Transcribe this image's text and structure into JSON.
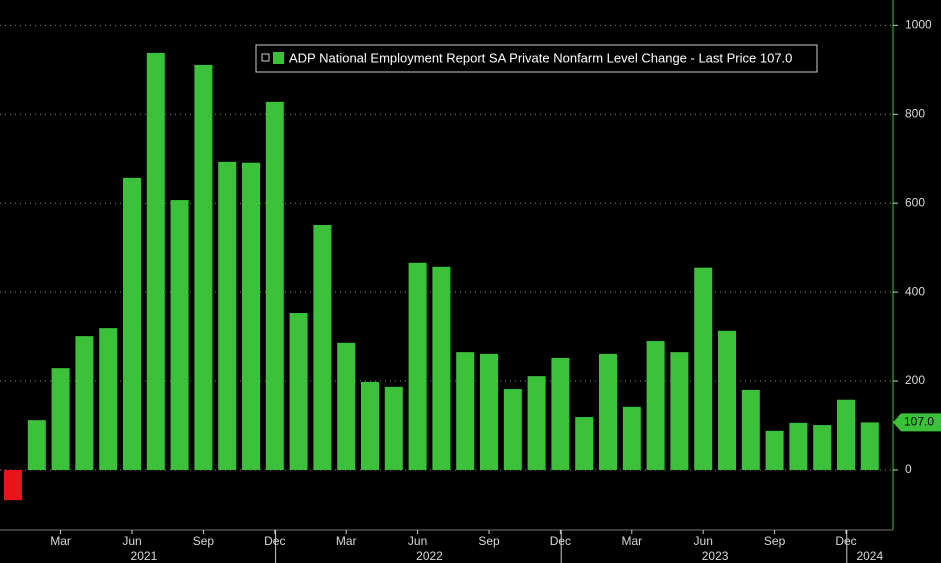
{
  "chart_data": {
    "type": "bar",
    "legend": "ADP National Employment Report SA Private Nonfarm Level Change - Last Price 107.0",
    "last_price_label": "107.0",
    "categories": [
      null,
      null,
      "Mar",
      null,
      null,
      "Jun",
      null,
      null,
      "Sep",
      null,
      null,
      "Dec",
      null,
      null,
      "Mar",
      null,
      null,
      "Jun",
      null,
      null,
      "Sep",
      null,
      null,
      "Dec",
      null,
      null,
      "Mar",
      null,
      null,
      "Jun",
      null,
      null,
      "Sep",
      null,
      null,
      "Dec",
      null
    ],
    "years": [
      "2021",
      "2022",
      "2023",
      "2024"
    ],
    "values": [
      -68,
      112,
      229,
      301,
      319,
      657,
      938,
      607,
      911,
      693,
      691,
      828,
      353,
      551,
      286,
      198,
      187,
      466,
      457,
      265,
      261,
      182,
      211,
      252,
      119,
      261,
      142,
      290,
      265,
      455,
      313,
      180,
      88,
      106,
      101,
      158,
      107
    ],
    "color": "#3cc13b",
    "negative_color": "#e8141a",
    "ylim": [
      -135,
      1057
    ],
    "yticks": [
      0,
      200,
      400,
      600,
      800,
      1000
    ],
    "grid": true
  }
}
